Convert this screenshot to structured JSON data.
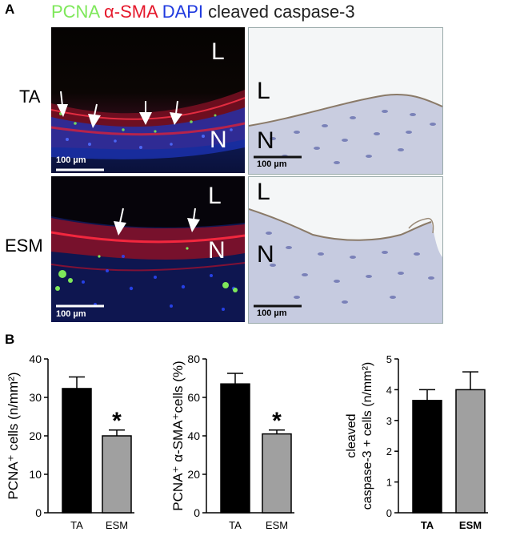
{
  "panel_a_label": "A",
  "panel_b_label": "B",
  "stain_title": {
    "pcna": "PCNA",
    "sma": "α-SMA",
    "dapi": "DAPI",
    "caspase": "cleaved caspase-3"
  },
  "colors": {
    "pcna": "#7ee85a",
    "sma": "#e5182b",
    "dapi": "#1f3adf",
    "caspase": "#222222",
    "bar_ta": "#000000",
    "bar_esm": "#a0a0a0"
  },
  "rows": [
    {
      "label": "TA",
      "fluor_letters": [
        "L",
        "N"
      ],
      "ihc_letters": [
        "L",
        "N"
      ],
      "scale": "100 µm"
    },
    {
      "label": "ESM",
      "fluor_letters": [
        "L",
        "N"
      ],
      "ihc_letters": [
        "L",
        "N"
      ],
      "scale": "100 µm"
    }
  ],
  "chart_data": [
    {
      "type": "bar",
      "categories": [
        "TA",
        "ESM"
      ],
      "values": [
        32.3,
        20.0
      ],
      "errors": [
        3.0,
        1.5
      ],
      "ylabel": "PCNA⁺ cells (n/mm²)",
      "ylim": [
        0,
        40
      ],
      "yticks": [
        "0",
        "10",
        "20",
        "30",
        "40"
      ],
      "annotation": "*",
      "annotation_category": "ESM"
    },
    {
      "type": "bar",
      "categories": [
        "TA",
        "ESM"
      ],
      "values": [
        67.0,
        41.0
      ],
      "errors": [
        5.5,
        2.0
      ],
      "ylabel": "PCNA⁺ α-SMA⁺cells (%)",
      "ylim": [
        0,
        80
      ],
      "yticks": [
        "0",
        "20",
        "40",
        "60",
        "80"
      ],
      "annotation": "*",
      "annotation_category": "ESM"
    },
    {
      "type": "bar",
      "categories": [
        "TA",
        "ESM"
      ],
      "values": [
        3.65,
        4.0
      ],
      "errors": [
        0.35,
        0.58
      ],
      "ylabel_lines": [
        "cleaved",
        "caspase-3 + cells (n/mm²)"
      ],
      "ylim": [
        0,
        5
      ],
      "yticks": [
        "0",
        "1",
        "2",
        "3",
        "4",
        "5"
      ],
      "bold_categories": true
    }
  ]
}
